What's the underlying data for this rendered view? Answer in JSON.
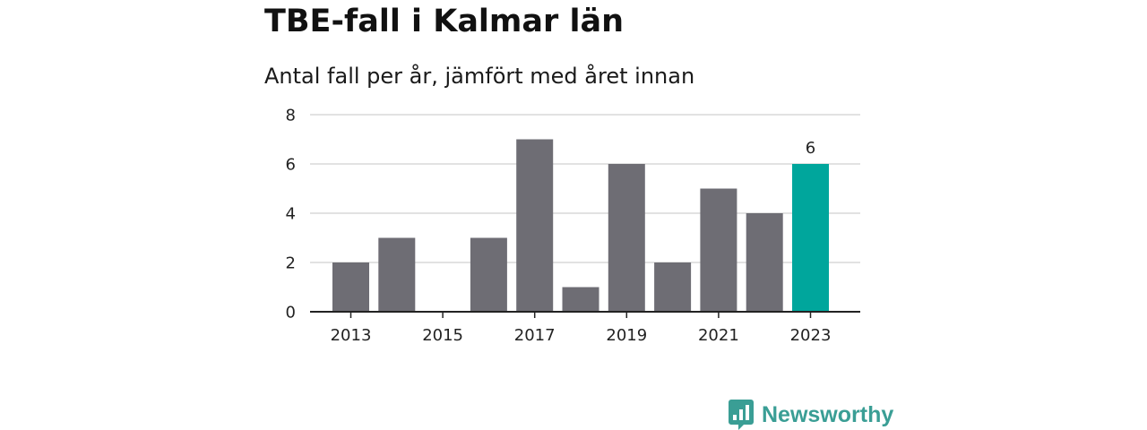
{
  "brand": {
    "name": "Newsworthy",
    "icon": "newsworthy-logo-icon",
    "color": "#3a9e95"
  },
  "colors": {
    "bar": "#6e6d74",
    "highlight": "#00a69c",
    "grid": "#d9d9d9",
    "axis": "#222222"
  },
  "chart_data": {
    "type": "bar",
    "title": "TBE-fall i Kalmar län",
    "subtitle": "Antal fall per år, jämfört med året innan",
    "xlabel": "",
    "ylabel": "",
    "categories": [
      "2013",
      "2014",
      "2015",
      "2016",
      "2017",
      "2018",
      "2019",
      "2020",
      "2021",
      "2022",
      "2023"
    ],
    "values": [
      2,
      3,
      0,
      3,
      7,
      1,
      6,
      2,
      5,
      4,
      6
    ],
    "x_tick_labels": [
      "2013",
      "2015",
      "2017",
      "2019",
      "2021",
      "2023"
    ],
    "y_ticks": [
      "0",
      "2",
      "4",
      "6",
      "8"
    ],
    "ylim": [
      0,
      8
    ],
    "grid": true,
    "legend": "none",
    "highlight_category": "2023",
    "data_labels": [
      {
        "category": "2023",
        "text": "6"
      }
    ]
  }
}
